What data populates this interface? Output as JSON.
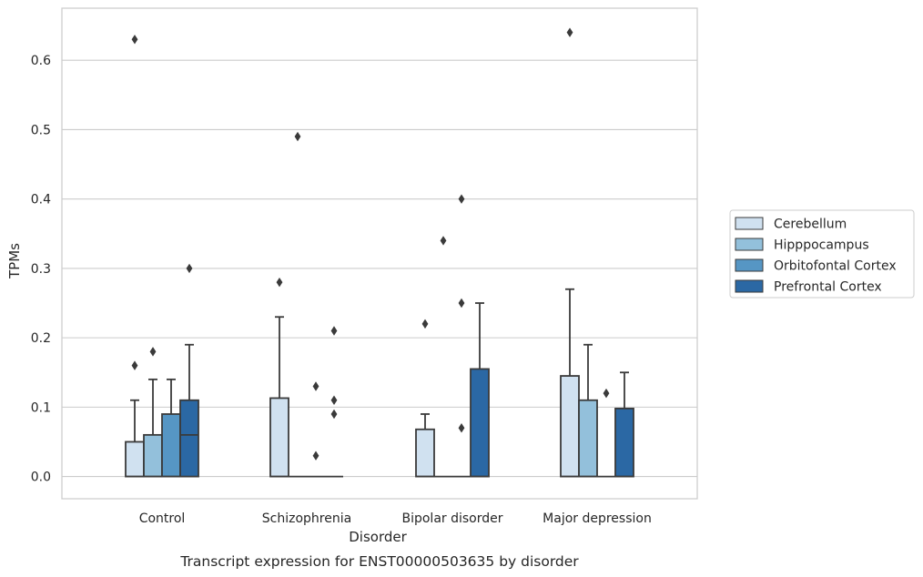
{
  "chart_data": {
    "type": "box",
    "caption": "Transcript expression for ENST00000503635 by disorder",
    "xlabel": "Disorder",
    "ylabel": "TPMs",
    "ylim": [
      -0.032,
      0.675
    ],
    "yticks": [
      "0.0",
      "0.1",
      "0.2",
      "0.3",
      "0.4",
      "0.5",
      "0.6"
    ],
    "grid": true,
    "legend_position": "right",
    "categories": [
      "Control",
      "Schizophrenia",
      "Bipolar disorder",
      "Major depression"
    ],
    "series": [
      {
        "name": "Cerebellum",
        "color": "#d0e1f0",
        "boxes": [
          {
            "q1": 0.0,
            "median": 0.0,
            "q3": 0.05,
            "whisker_low": 0.0,
            "whisker_high": 0.11,
            "outliers": [
              0.16,
              0.63
            ]
          },
          {
            "q1": 0.0,
            "median": 0.0,
            "q3": 0.113,
            "whisker_low": 0.0,
            "whisker_high": 0.23,
            "outliers": [
              0.28
            ]
          },
          {
            "q1": 0.0,
            "median": 0.0,
            "q3": 0.068,
            "whisker_low": 0.0,
            "whisker_high": 0.09,
            "outliers": [
              0.22
            ]
          },
          {
            "q1": 0.0,
            "median": 0.0,
            "q3": 0.145,
            "whisker_low": 0.0,
            "whisker_high": 0.27,
            "outliers": [
              0.64
            ]
          }
        ]
      },
      {
        "name": "Hipppocampus",
        "color": "#93c0db",
        "boxes": [
          {
            "q1": 0.0,
            "median": 0.0,
            "q3": 0.06,
            "whisker_low": 0.0,
            "whisker_high": 0.14,
            "outliers": [
              0.18
            ]
          },
          {
            "q1": 0.0,
            "median": 0.0,
            "q3": 0.0,
            "whisker_low": 0.0,
            "whisker_high": 0.0,
            "outliers": [
              0.49
            ]
          },
          {
            "q1": 0.0,
            "median": 0.0,
            "q3": 0.0,
            "whisker_low": 0.0,
            "whisker_high": 0.0,
            "outliers": [
              0.34
            ]
          },
          {
            "q1": 0.0,
            "median": 0.0,
            "q3": 0.11,
            "whisker_low": 0.0,
            "whisker_high": 0.19,
            "outliers": []
          }
        ]
      },
      {
        "name": "Orbitofontal Cortex",
        "color": "#5696c4",
        "boxes": [
          {
            "q1": 0.0,
            "median": 0.0,
            "q3": 0.09,
            "whisker_low": 0.0,
            "whisker_high": 0.14,
            "outliers": []
          },
          {
            "q1": 0.0,
            "median": 0.0,
            "q3": 0.0,
            "whisker_low": 0.0,
            "whisker_high": 0.0,
            "outliers": [
              0.03,
              0.13
            ]
          },
          {
            "q1": 0.0,
            "median": 0.0,
            "q3": 0.0,
            "whisker_low": 0.0,
            "whisker_high": 0.0,
            "outliers": [
              0.07,
              0.25,
              0.4
            ]
          },
          {
            "q1": 0.0,
            "median": 0.0,
            "q3": 0.0,
            "whisker_low": 0.0,
            "whisker_high": 0.0,
            "outliers": [
              0.12
            ]
          }
        ]
      },
      {
        "name": "Prefrontal Cortex",
        "color": "#2b68a4",
        "boxes": [
          {
            "q1": 0.0,
            "median": 0.06,
            "q3": 0.11,
            "whisker_low": 0.0,
            "whisker_high": 0.19,
            "outliers": [
              0.3
            ]
          },
          {
            "q1": 0.0,
            "median": 0.0,
            "q3": 0.0,
            "whisker_low": 0.0,
            "whisker_high": 0.0,
            "outliers": [
              0.09,
              0.11,
              0.21
            ]
          },
          {
            "q1": 0.0,
            "median": 0.0,
            "q3": 0.155,
            "whisker_low": 0.0,
            "whisker_high": 0.25,
            "outliers": []
          },
          {
            "q1": 0.0,
            "median": 0.0,
            "q3": 0.098,
            "whisker_low": 0.0,
            "whisker_high": 0.15,
            "outliers": []
          }
        ]
      }
    ]
  }
}
